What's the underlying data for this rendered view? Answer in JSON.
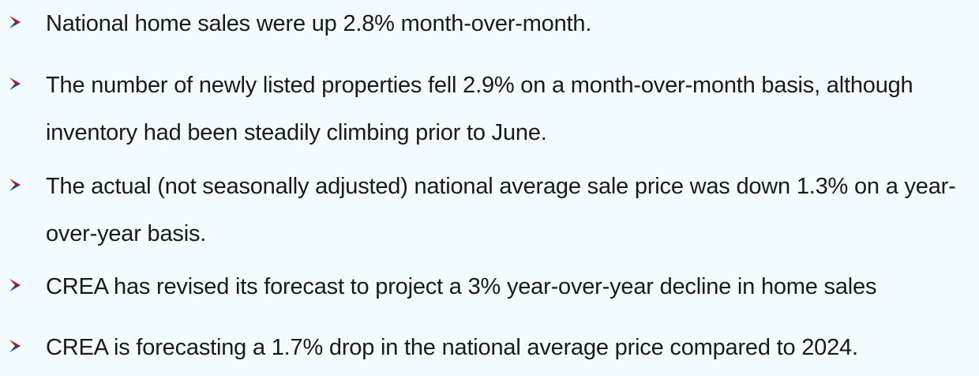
{
  "colors": {
    "background": "#f2fcfe",
    "text": "#1a1a1a",
    "bullet_red": "#c8102e",
    "bullet_blue": "#1f3f8f"
  },
  "bullets": [
    {
      "icon": "chevron-right-bullet-icon",
      "text": "National home sales were up 2.8% month-over-month."
    },
    {
      "icon": "chevron-right-bullet-icon",
      "text": "The number of newly listed properties fell 2.9% on a month-over-month basis, although inventory had been steadily climbing prior to June."
    },
    {
      "icon": "chevron-right-bullet-icon",
      "text": "The actual (not seasonally adjusted) national average sale price was down 1.3% on a year-over-year basis."
    },
    {
      "icon": "chevron-right-bullet-icon",
      "text": "CREA has revised its forecast to project a 3% year-over-year decline in home sales"
    },
    {
      "icon": "chevron-right-bullet-icon",
      "text": "CREA is forecasting a 1.7% drop in the national average price compared to 2024."
    }
  ]
}
